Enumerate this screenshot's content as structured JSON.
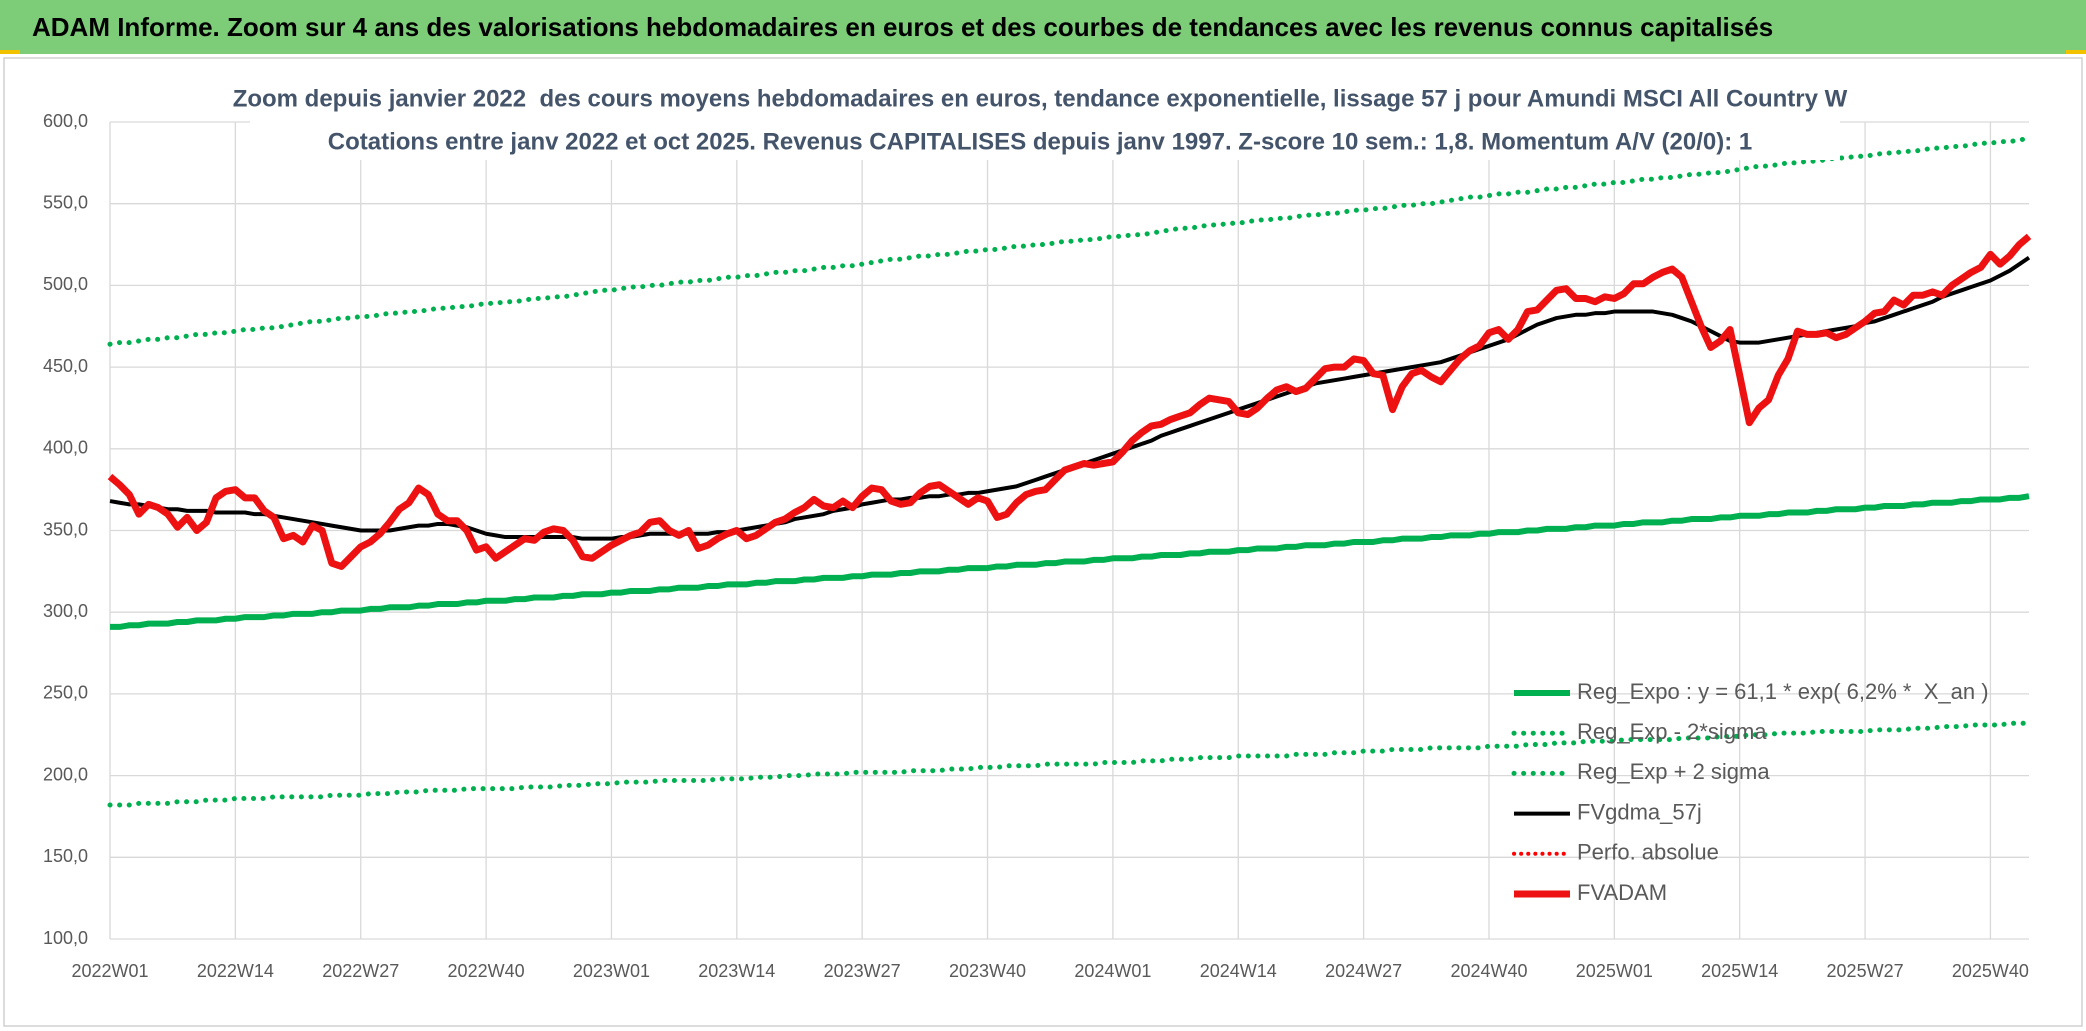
{
  "header": {
    "title": "ADAM Informe. Zoom sur 4 ans des valorisations hebdomadaires en euros et des courbes de tendances avec les revenus connus capitalisés"
  },
  "chart_data": {
    "type": "line",
    "title": "Zoom depuis janvier 2022  des cours moyens hebdomadaires en euros, tendance exponentielle, lissage 57 j pour Amundi MSCI All Country W",
    "subtitle": "Cotations entre janv 2022 et oct 2025. Revenus CAPITALISES depuis janv 1997. Z-score 10 sem.: 1,8. Momentum A/V (20/0): 1",
    "categories": [
      "2022W01",
      null,
      null,
      null,
      null,
      null,
      null,
      null,
      null,
      null,
      null,
      null,
      null,
      "2022W14",
      null,
      null,
      null,
      null,
      null,
      null,
      null,
      null,
      null,
      null,
      null,
      null,
      "2022W27",
      null,
      null,
      null,
      null,
      null,
      null,
      null,
      null,
      null,
      null,
      null,
      null,
      "2022W40",
      null,
      null,
      null,
      null,
      null,
      null,
      null,
      null,
      null,
      null,
      null,
      null,
      "2023W01",
      null,
      null,
      null,
      null,
      null,
      null,
      null,
      null,
      null,
      null,
      null,
      null,
      "2023W14",
      null,
      null,
      null,
      null,
      null,
      null,
      null,
      null,
      null,
      null,
      null,
      null,
      "2023W27",
      null,
      null,
      null,
      null,
      null,
      null,
      null,
      null,
      null,
      null,
      null,
      null,
      "2023W40",
      null,
      null,
      null,
      null,
      null,
      null,
      null,
      null,
      null,
      null,
      null,
      null,
      "2024W01",
      null,
      null,
      null,
      null,
      null,
      null,
      null,
      null,
      null,
      null,
      null,
      null,
      "2024W14",
      null,
      null,
      null,
      null,
      null,
      null,
      null,
      null,
      null,
      null,
      null,
      null,
      "2024W27",
      null,
      null,
      null,
      null,
      null,
      null,
      null,
      null,
      null,
      null,
      null,
      null,
      "2024W40",
      null,
      null,
      null,
      null,
      null,
      null,
      null,
      null,
      null,
      null,
      null,
      null,
      "2025W01",
      null,
      null,
      null,
      null,
      null,
      null,
      null,
      null,
      null,
      null,
      null,
      null,
      "2025W14",
      null,
      null,
      null,
      null,
      null,
      null,
      null,
      null,
      null,
      null,
      null,
      null,
      "2025W27",
      null,
      null,
      null,
      null,
      null,
      null,
      null,
      null,
      null,
      null,
      null,
      null,
      "2025W40",
      null,
      null,
      null,
      null
    ],
    "series": [
      {
        "name": "Reg_Expo : y = 61,1 * exp( 6,2% *  X_an )",
        "color": "#00b050",
        "line_style": "solid",
        "values": [
          291,
          291,
          292,
          292,
          293,
          293,
          293,
          294,
          294,
          295,
          295,
          295,
          296,
          296,
          297,
          297,
          297,
          298,
          298,
          299,
          299,
          299,
          300,
          300,
          301,
          301,
          301,
          302,
          302,
          303,
          303,
          303,
          304,
          304,
          305,
          305,
          305,
          306,
          306,
          307,
          307,
          307,
          308,
          308,
          309,
          309,
          309,
          310,
          310,
          311,
          311,
          311,
          312,
          312,
          313,
          313,
          313,
          314,
          314,
          315,
          315,
          315,
          316,
          316,
          317,
          317,
          317,
          318,
          318,
          319,
          319,
          319,
          320,
          320,
          321,
          321,
          321,
          322,
          322,
          323,
          323,
          323,
          324,
          324,
          325,
          325,
          325,
          326,
          326,
          327,
          327,
          327,
          328,
          328,
          329,
          329,
          329,
          330,
          330,
          331,
          331,
          331,
          332,
          332,
          333,
          333,
          333,
          334,
          334,
          335,
          335,
          335,
          336,
          336,
          337,
          337,
          337,
          338,
          338,
          339,
          339,
          339,
          340,
          340,
          341,
          341,
          341,
          342,
          342,
          343,
          343,
          343,
          344,
          344,
          345,
          345,
          345,
          346,
          346,
          347,
          347,
          347,
          348,
          348,
          349,
          349,
          349,
          350,
          350,
          351,
          351,
          351,
          352,
          352,
          353,
          353,
          353,
          354,
          354,
          355,
          355,
          355,
          356,
          356,
          357,
          357,
          357,
          358,
          358,
          359,
          359,
          359,
          360,
          360,
          361,
          361,
          361,
          362,
          362,
          363,
          363,
          363,
          364,
          364,
          365,
          365,
          365,
          366,
          366,
          367,
          367,
          367,
          368,
          368,
          369,
          369,
          369,
          370,
          370,
          371
        ]
      },
      {
        "name": "Reg_Exp - 2*sigma",
        "color": "#00b050",
        "line_style": "dotted",
        "values": [
          182,
          182,
          182,
          183,
          183,
          183,
          183,
          184,
          184,
          184,
          185,
          185,
          185,
          186,
          186,
          186,
          186,
          187,
          187,
          187,
          187,
          187,
          187,
          188,
          188,
          188,
          188,
          189,
          189,
          189,
          190,
          190,
          190,
          191,
          191,
          191,
          191,
          192,
          192,
          192,
          192,
          192,
          192,
          193,
          193,
          193,
          193,
          194,
          194,
          194,
          195,
          195,
          195,
          196,
          196,
          196,
          196,
          197,
          197,
          197,
          197,
          197,
          197,
          198,
          198,
          198,
          198,
          199,
          199,
          199,
          200,
          200,
          200,
          201,
          201,
          201,
          201,
          202,
          202,
          202,
          202,
          202,
          202,
          203,
          203,
          203,
          203,
          204,
          204,
          204,
          205,
          205,
          205,
          206,
          206,
          206,
          206,
          207,
          207,
          207,
          207,
          207,
          207,
          208,
          208,
          208,
          208,
          209,
          209,
          209,
          210,
          210,
          210,
          211,
          211,
          211,
          211,
          212,
          212,
          212,
          212,
          212,
          212,
          213,
          213,
          213,
          213,
          214,
          214,
          214,
          215,
          215,
          215,
          216,
          216,
          216,
          216,
          217,
          217,
          217,
          217,
          217,
          217,
          218,
          218,
          218,
          218,
          219,
          219,
          219,
          220,
          220,
          220,
          221,
          221,
          221,
          221,
          222,
          222,
          222,
          222,
          222,
          222,
          223,
          223,
          223,
          223,
          224,
          224,
          224,
          225,
          225,
          225,
          226,
          226,
          226,
          226,
          227,
          227,
          227,
          227,
          227,
          227,
          228,
          228,
          228,
          228,
          229,
          229,
          229,
          230,
          230,
          230,
          231,
          231,
          231,
          231,
          232,
          232,
          232
        ]
      },
      {
        "name": "Reg_Exp + 2 sigma",
        "color": "#00b050",
        "line_style": "dotted",
        "values": [
          464,
          465,
          465,
          466,
          467,
          467,
          468,
          468,
          469,
          470,
          470,
          471,
          471,
          472,
          473,
          473,
          474,
          474,
          475,
          476,
          477,
          478,
          478,
          479,
          480,
          480,
          481,
          481,
          482,
          483,
          483,
          484,
          484,
          485,
          486,
          486,
          487,
          487,
          488,
          489,
          489,
          490,
          490,
          491,
          492,
          492,
          493,
          493,
          494,
          495,
          496,
          497,
          497,
          498,
          499,
          499,
          500,
          500,
          501,
          502,
          502,
          503,
          503,
          504,
          505,
          505,
          506,
          506,
          507,
          508,
          508,
          509,
          509,
          510,
          511,
          511,
          512,
          512,
          513,
          514,
          515,
          516,
          516,
          517,
          518,
          518,
          519,
          519,
          520,
          521,
          521,
          522,
          522,
          523,
          524,
          524,
          525,
          525,
          526,
          527,
          527,
          528,
          528,
          529,
          530,
          530,
          531,
          531,
          532,
          533,
          534,
          535,
          535,
          536,
          537,
          537,
          538,
          538,
          539,
          540,
          540,
          541,
          541,
          542,
          543,
          543,
          544,
          544,
          545,
          546,
          546,
          547,
          547,
          548,
          549,
          549,
          550,
          550,
          551,
          552,
          553,
          554,
          554,
          555,
          556,
          556,
          557,
          557,
          558,
          559,
          559,
          560,
          560,
          561,
          562,
          562,
          563,
          563,
          564,
          565,
          565,
          566,
          566,
          567,
          568,
          568,
          569,
          569,
          570,
          571,
          572,
          573,
          573,
          574,
          575,
          575,
          576,
          576,
          577,
          578,
          578,
          579,
          579,
          580,
          581,
          581,
          582,
          582,
          583,
          584,
          584,
          585,
          585,
          586,
          587,
          587,
          588,
          588,
          589,
          590
        ]
      },
      {
        "name": "FVgdma_57j",
        "color": "#000000",
        "line_style": "solid",
        "values": [
          368,
          367,
          366,
          366,
          365,
          364,
          363,
          363,
          362,
          362,
          362,
          361,
          361,
          361,
          361,
          360,
          360,
          359,
          358,
          357,
          356,
          355,
          354,
          353,
          352,
          351,
          350,
          350,
          350,
          350,
          351,
          352,
          353,
          353,
          354,
          354,
          353,
          352,
          350,
          348,
          347,
          346,
          346,
          346,
          346,
          346,
          346,
          346,
          346,
          345,
          345,
          345,
          345,
          346,
          346,
          347,
          348,
          348,
          348,
          348,
          348,
          348,
          348,
          349,
          349,
          350,
          351,
          352,
          353,
          354,
          355,
          357,
          358,
          359,
          360,
          362,
          363,
          364,
          366,
          367,
          368,
          369,
          369,
          370,
          370,
          371,
          371,
          372,
          372,
          373,
          373,
          374,
          375,
          376,
          377,
          379,
          381,
          383,
          385,
          387,
          389,
          391,
          393,
          395,
          397,
          399,
          401,
          403,
          405,
          408,
          410,
          412,
          414,
          416,
          418,
          420,
          422,
          424,
          426,
          428,
          430,
          432,
          434,
          436,
          438,
          440,
          441,
          442,
          443,
          444,
          445,
          446,
          447,
          448,
          449,
          450,
          451,
          452,
          453,
          455,
          457,
          459,
          461,
          463,
          465,
          467,
          470,
          473,
          476,
          478,
          480,
          481,
          482,
          482,
          483,
          483,
          484,
          484,
          484,
          484,
          484,
          483,
          482,
          480,
          478,
          475,
          472,
          469,
          466,
          465,
          465,
          465,
          466,
          467,
          468,
          469,
          470,
          471,
          472,
          473,
          474,
          475,
          477,
          478,
          480,
          482,
          484,
          486,
          488,
          490,
          493,
          495,
          497,
          499,
          501,
          503,
          506,
          509,
          513,
          517
        ]
      },
      {
        "name": "Perfo. absolue",
        "color": "#ff0000",
        "line_style": "dotted"
      },
      {
        "name": "FVADAM",
        "color": "#ee1111",
        "line_style": "solid",
        "values": [
          383,
          378,
          372,
          360,
          366,
          364,
          360,
          352,
          358,
          350,
          355,
          370,
          374,
          375,
          370,
          370,
          362,
          358,
          345,
          347,
          343,
          353,
          350,
          330,
          328,
          334,
          340,
          343,
          348,
          355,
          363,
          367,
          376,
          372,
          360,
          356,
          356,
          350,
          338,
          340,
          333,
          337,
          341,
          345,
          344,
          349,
          351,
          350,
          344,
          334,
          333,
          337,
          341,
          344,
          347,
          349,
          355,
          356,
          350,
          347,
          350,
          339,
          341,
          345,
          348,
          350,
          345,
          347,
          351,
          355,
          357,
          361,
          364,
          369,
          365,
          364,
          368,
          364,
          371,
          376,
          375,
          368,
          366,
          367,
          373,
          377,
          378,
          374,
          370,
          366,
          370,
          368,
          358,
          360,
          367,
          372,
          374,
          375,
          381,
          387,
          389,
          391,
          390,
          391,
          392,
          398,
          405,
          410,
          414,
          415,
          418,
          420,
          422,
          427,
          431,
          430,
          429,
          422,
          421,
          425,
          431,
          436,
          438,
          435,
          437,
          443,
          449,
          450,
          450,
          455,
          454,
          446,
          445,
          424,
          438,
          446,
          448,
          444,
          441,
          448,
          455,
          460,
          463,
          471,
          473,
          467,
          473,
          484,
          485,
          491,
          497,
          498,
          492,
          492,
          490,
          493,
          492,
          495,
          501,
          501,
          505,
          508,
          510,
          505,
          490,
          475,
          462,
          466,
          473,
          445,
          416,
          425,
          430,
          445,
          455,
          472,
          470,
          470,
          471,
          468,
          470,
          474,
          478,
          483,
          484,
          491,
          488,
          494,
          494,
          496,
          494,
          500,
          504,
          508,
          511,
          519,
          513,
          518,
          525,
          530
        ]
      }
    ],
    "ylim": [
      100,
      600
    ],
    "yticks": [
      {
        "value": 100,
        "label": "100,0"
      },
      {
        "value": 150,
        "label": "150,0"
      },
      {
        "value": 200,
        "label": "200,0"
      },
      {
        "value": 250,
        "label": "250,0"
      },
      {
        "value": 300,
        "label": "300,0"
      },
      {
        "value": 350,
        "label": "350,0"
      },
      {
        "value": 400,
        "label": "400,0"
      },
      {
        "value": 450,
        "label": "450,0"
      },
      {
        "value": 500,
        "label": "500,0"
      },
      {
        "value": 550,
        "label": "550,0"
      },
      {
        "value": 600,
        "label": "600,0"
      }
    ],
    "grid": true,
    "legend": "lower right"
  }
}
